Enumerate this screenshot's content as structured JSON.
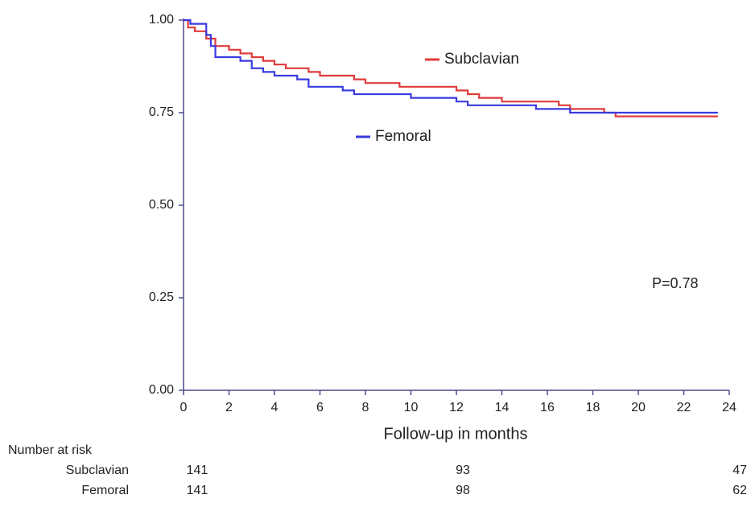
{
  "chart_data": {
    "type": "step",
    "x_label": "Follow-up in months",
    "annotation": "P=0.78",
    "xlim": [
      0,
      24
    ],
    "xticks": [
      0,
      2,
      4,
      6,
      8,
      10,
      12,
      14,
      16,
      18,
      20,
      22,
      24
    ],
    "ylim": [
      0,
      1
    ],
    "yticks": [
      {
        "value": 0,
        "label": "0.00"
      },
      {
        "value": 0.25,
        "label": "0.25"
      },
      {
        "value": 0.5,
        "label": "0.50"
      },
      {
        "value": 0.75,
        "label": "0.75"
      },
      {
        "value": 1,
        "label": "1.00"
      }
    ],
    "series": [
      {
        "name": "Subclavian",
        "color": "#e03a3a",
        "x": [
          0,
          0.2,
          0.5,
          1,
          1.4,
          2,
          2.5,
          3,
          3.5,
          4,
          4.5,
          5.5,
          6,
          7.5,
          8,
          9.5,
          12,
          12.5,
          13,
          14,
          16.5,
          17,
          18.5,
          19,
          23.5
        ],
        "values": [
          1,
          0.98,
          0.97,
          0.95,
          0.93,
          0.92,
          0.91,
          0.9,
          0.89,
          0.88,
          0.87,
          0.86,
          0.85,
          0.84,
          0.83,
          0.82,
          0.81,
          0.8,
          0.79,
          0.78,
          0.77,
          0.76,
          0.75,
          0.74,
          0.74
        ]
      },
      {
        "name": "Femoral",
        "color": "#3a3ae0",
        "x": [
          0,
          0.3,
          1,
          1.2,
          1.4,
          2.5,
          3,
          3.5,
          4,
          5,
          5.5,
          7,
          7.5,
          10,
          12,
          12.5,
          15.5,
          17,
          23.5
        ],
        "values": [
          1,
          0.99,
          0.96,
          0.93,
          0.9,
          0.89,
          0.87,
          0.86,
          0.85,
          0.84,
          0.82,
          0.81,
          0.8,
          0.79,
          0.78,
          0.77,
          0.76,
          0.75,
          0.75
        ]
      }
    ],
    "risk_table": {
      "title": "Number at risk",
      "rows": [
        {
          "name": "Subclavian",
          "values": [
            141,
            93,
            47
          ]
        },
        {
          "name": "Femoral",
          "values": [
            141,
            98,
            62
          ]
        }
      ]
    }
  }
}
